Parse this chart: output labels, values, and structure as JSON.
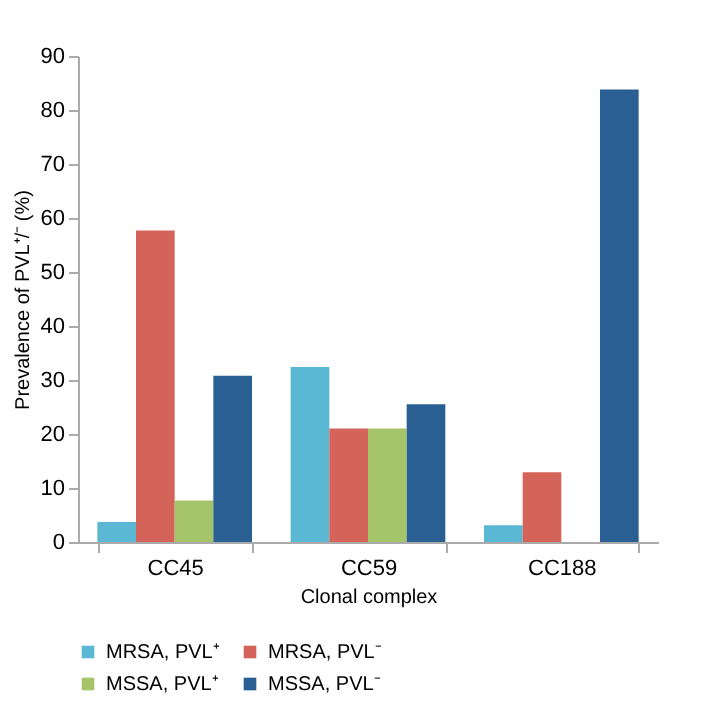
{
  "chart_data": {
    "type": "bar",
    "xlabel": "Clonal complex",
    "ylabel": "Prevalence of PVL⁺/⁻ (%)",
    "categories": [
      "CC45",
      "CC59",
      "CC188"
    ],
    "series": [
      {
        "name": "MRSA, PVL⁺",
        "color": "#5bb8d4",
        "values": [
          3.7,
          32.4,
          3.1
        ]
      },
      {
        "name": "MRSA, PVL⁻",
        "color": "#d4645a",
        "values": [
          57.7,
          21.0,
          12.9
        ]
      },
      {
        "name": "MSSA, PVL⁺",
        "color": "#a5c46a",
        "values": [
          7.7,
          21.0,
          null
        ]
      },
      {
        "name": "MSSA, PVL⁻",
        "color": "#2a5f94",
        "values": [
          30.8,
          25.5,
          83.8
        ]
      }
    ],
    "ylim": [
      0,
      90
    ],
    "yticks": [
      0,
      10,
      20,
      30,
      40,
      50,
      60,
      70,
      80,
      90
    ],
    "grid": false,
    "legend": "bottom"
  }
}
